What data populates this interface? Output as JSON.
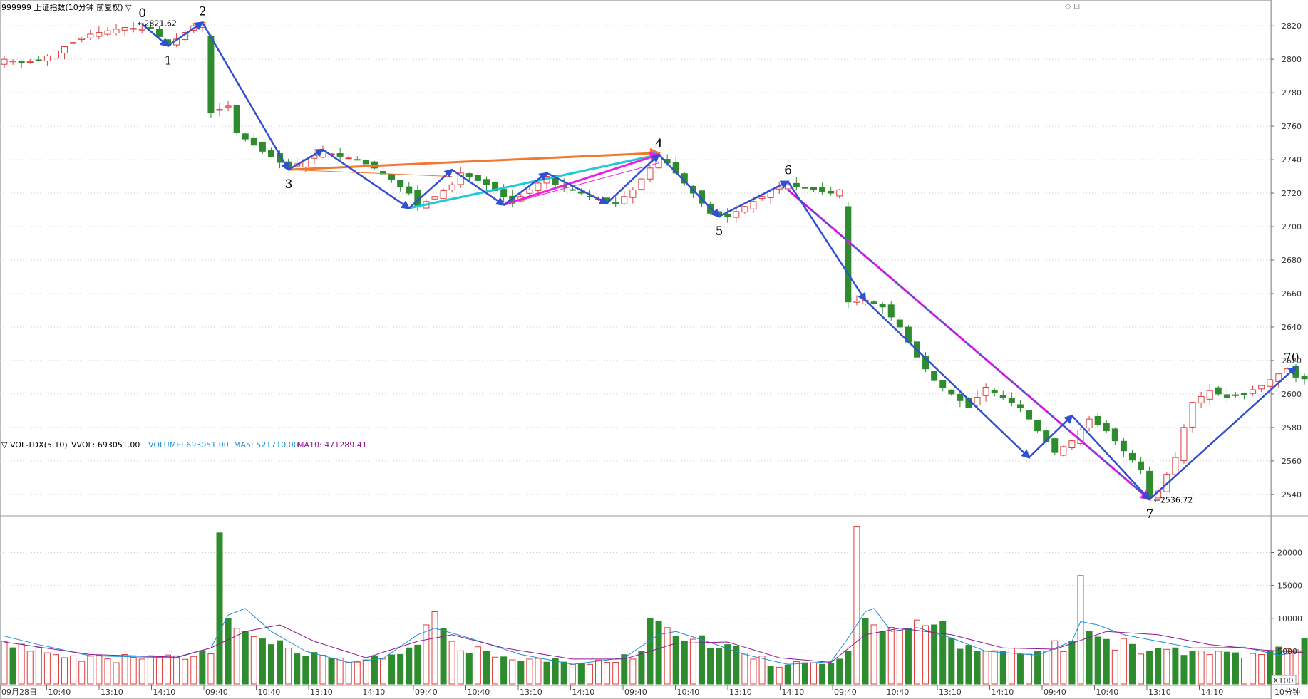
{
  "header": {
    "title": "999999 上证指数(10分钟 前复权) ▽",
    "vol_indicator": "▽ VOL-TDX(5,10)",
    "vvol": "VVOL: 693051.00",
    "volume": "VOLUME: 693051.00",
    "ma5": "MA5: 521710.00",
    "ma10": "MA10: 471289.41"
  },
  "colors": {
    "up": "#e03c3c",
    "down": "#2e8b2e",
    "wave": "#3050d0",
    "orange": "#f07830",
    "cyan": "#20c8d8",
    "magenta": "#f020e0",
    "ma5": "#1a8fd8",
    "ma10": "#901890"
  },
  "chart_data": {
    "type": "candlestick",
    "price_axis": {
      "ticks": [
        2540,
        2560,
        2580,
        2600,
        2620,
        2640,
        2660,
        2680,
        2700,
        2720,
        2740,
        2760,
        2780,
        2800,
        2820
      ],
      "range": [
        2528,
        2832
      ]
    },
    "volume_axis": {
      "ticks": [
        5000,
        10000,
        15000,
        20000
      ],
      "unit_label": "X100",
      "range": [
        0,
        24500
      ]
    },
    "x_axis": {
      "labels": [
        "09月28日",
        "10:40",
        "13:10",
        "14:10",
        "09:40",
        "10:40",
        "13:10",
        "14:10",
        "09:40",
        "10:40",
        "13:10",
        "14:10",
        "09:40",
        "10:40",
        "13:10",
        "14:10",
        "09:40",
        "10:40",
        "13:10",
        "14:10",
        "09:40",
        "10:40",
        "13:10",
        "14:10"
      ],
      "period": "10分钟"
    },
    "price_key": [
      [
        0,
        2800
      ],
      [
        2,
        2798
      ],
      [
        4,
        2799
      ],
      [
        6,
        2805
      ],
      [
        8,
        2810
      ],
      [
        10,
        2815
      ],
      [
        12,
        2817
      ],
      [
        14,
        2819
      ],
      [
        16,
        2818
      ],
      [
        17,
        2819
      ],
      [
        19,
        2808
      ],
      [
        22,
        2820
      ],
      [
        23,
        2822
      ],
      [
        24,
        2768
      ],
      [
        26,
        2772
      ],
      [
        27,
        2756
      ],
      [
        30,
        2745
      ],
      [
        33,
        2735
      ],
      [
        35,
        2740
      ],
      [
        37,
        2745
      ],
      [
        39,
        2742
      ],
      [
        41,
        2740
      ],
      [
        43,
        2735
      ],
      [
        45,
        2728
      ],
      [
        47,
        2720
      ],
      [
        48,
        2712
      ],
      [
        50,
        2718
      ],
      [
        52,
        2725
      ],
      [
        53,
        2732
      ],
      [
        54,
        2730
      ],
      [
        56,
        2725
      ],
      [
        58,
        2718
      ],
      [
        59,
        2714
      ],
      [
        61,
        2722
      ],
      [
        63,
        2730
      ],
      [
        64,
        2725
      ],
      [
        66,
        2722
      ],
      [
        68,
        2718
      ],
      [
        70,
        2715
      ],
      [
        71,
        2714
      ],
      [
        73,
        2722
      ],
      [
        75,
        2735
      ],
      [
        76,
        2742
      ],
      [
        77,
        2738
      ],
      [
        78,
        2732
      ],
      [
        80,
        2720
      ],
      [
        82,
        2708
      ],
      [
        84,
        2706
      ],
      [
        86,
        2712
      ],
      [
        88,
        2718
      ],
      [
        89,
        2722
      ],
      [
        91,
        2725
      ],
      [
        92,
        2724
      ],
      [
        94,
        2722
      ],
      [
        96,
        2720
      ],
      [
        97,
        2722
      ],
      [
        98,
        2655
      ],
      [
        100,
        2656
      ],
      [
        102,
        2652
      ],
      [
        104,
        2640
      ],
      [
        106,
        2622
      ],
      [
        108,
        2608
      ],
      [
        110,
        2600
      ],
      [
        112,
        2592
      ],
      [
        114,
        2604
      ],
      [
        116,
        2598
      ],
      [
        118,
        2592
      ],
      [
        120,
        2578
      ],
      [
        122,
        2565
      ],
      [
        124,
        2572
      ],
      [
        126,
        2585
      ],
      [
        128,
        2578
      ],
      [
        130,
        2566
      ],
      [
        132,
        2555
      ],
      [
        133,
        2538
      ],
      [
        134,
        2542
      ],
      [
        136,
        2562
      ],
      [
        137,
        2580
      ],
      [
        138,
        2595
      ],
      [
        140,
        2602
      ],
      [
        142,
        2598
      ],
      [
        144,
        2600
      ],
      [
        146,
        2605
      ],
      [
        148,
        2612
      ],
      [
        149,
        2615
      ],
      [
        150,
        2610
      ],
      [
        151,
        2609
      ]
    ],
    "vol_key": [
      [
        0,
        6500
      ],
      [
        3,
        5000
      ],
      [
        8,
        4300
      ],
      [
        16,
        3800
      ],
      [
        22,
        4200
      ],
      [
        24,
        4600
      ],
      [
        25,
        23000
      ],
      [
        26,
        10000
      ],
      [
        28,
        8000
      ],
      [
        31,
        6000
      ],
      [
        35,
        4200
      ],
      [
        40,
        3300
      ],
      [
        44,
        3800
      ],
      [
        47,
        5500
      ],
      [
        49,
        9000
      ],
      [
        50,
        11000
      ],
      [
        52,
        6500
      ],
      [
        56,
        5000
      ],
      [
        61,
        3800
      ],
      [
        66,
        3000
      ],
      [
        70,
        3300
      ],
      [
        74,
        5000
      ],
      [
        75,
        10000
      ],
      [
        76,
        9500
      ],
      [
        79,
        6500
      ],
      [
        84,
        6000
      ],
      [
        87,
        3800
      ],
      [
        91,
        2900
      ],
      [
        95,
        3000
      ],
      [
        97,
        3800
      ],
      [
        98,
        5000
      ],
      [
        99,
        24000
      ],
      [
        100,
        10000
      ],
      [
        102,
        8000
      ],
      [
        105,
        8500
      ],
      [
        108,
        9000
      ],
      [
        110,
        7000
      ],
      [
        114,
        5000
      ],
      [
        118,
        4500
      ],
      [
        121,
        5000
      ],
      [
        124,
        6500
      ],
      [
        125,
        16500
      ],
      [
        126,
        8000
      ],
      [
        128,
        6800
      ],
      [
        133,
        5000
      ],
      [
        136,
        5500
      ],
      [
        141,
        5000
      ],
      [
        146,
        4500
      ],
      [
        150,
        5200
      ],
      [
        151,
        6900
      ]
    ],
    "annotations": {
      "wave_labels": [
        {
          "text": "0",
          "i": 16
        },
        {
          "text": "1",
          "i": 19
        },
        {
          "text": "2",
          "i": 23
        },
        {
          "text": "3",
          "i": 33
        },
        {
          "text": "4",
          "i": 76
        },
        {
          "text": "5",
          "i": 83
        },
        {
          "text": "6",
          "i": 91
        },
        {
          "text": "7",
          "i": 133
        },
        {
          "text": "70",
          "i": 149
        }
      ],
      "price_marks": [
        {
          "text": "2821.62",
          "i": 15,
          "price": 2821.62
        },
        {
          "text": "2536.72",
          "i": 133,
          "price": 2536.72
        }
      ]
    },
    "wave_lines": {
      "main": [
        [
          16,
          2821
        ],
        [
          19,
          2808
        ],
        [
          23,
          2822
        ],
        [
          33,
          2734
        ],
        [
          37,
          2746
        ],
        [
          47,
          2711
        ],
        [
          52,
          2734
        ],
        [
          58,
          2713
        ],
        [
          63,
          2732
        ],
        [
          70,
          2714
        ],
        [
          76,
          2743
        ],
        [
          83,
          2706
        ],
        [
          91,
          2727
        ],
        [
          100,
          2656
        ],
        [
          119,
          2562
        ],
        [
          124,
          2587
        ],
        [
          133,
          2537
        ],
        [
          150,
          2616
        ]
      ],
      "thin": [
        [
          91,
          2722
        ],
        [
          133,
          2537
        ]
      ],
      "orange": [
        [
          33,
          2734
        ],
        [
          76,
          2744
        ]
      ],
      "cyan": [
        [
          47,
          2711
        ],
        [
          76,
          2743
        ]
      ],
      "magenta": [
        [
          58,
          2713
        ],
        [
          76,
          2743
        ]
      ],
      "magenta2": [
        [
          91,
          2722
        ],
        [
          133,
          2537
        ]
      ]
    },
    "ma5_key": [
      [
        0,
        7300
      ],
      [
        4,
        6000
      ],
      [
        10,
        4300
      ],
      [
        20,
        4000
      ],
      [
        24,
        5500
      ],
      [
        26,
        10500
      ],
      [
        28,
        11500
      ],
      [
        31,
        8000
      ],
      [
        35,
        5000
      ],
      [
        40,
        3300
      ],
      [
        44,
        3900
      ],
      [
        48,
        7500
      ],
      [
        50,
        8500
      ],
      [
        54,
        7000
      ],
      [
        60,
        4500
      ],
      [
        66,
        3000
      ],
      [
        72,
        4000
      ],
      [
        76,
        7500
      ],
      [
        78,
        8000
      ],
      [
        82,
        6300
      ],
      [
        86,
        4500
      ],
      [
        91,
        3000
      ],
      [
        96,
        3400
      ],
      [
        98,
        7000
      ],
      [
        100,
        11000
      ],
      [
        101,
        11500
      ],
      [
        103,
        8000
      ],
      [
        106,
        8600
      ],
      [
        110,
        7000
      ],
      [
        114,
        5000
      ],
      [
        120,
        4400
      ],
      [
        124,
        6500
      ],
      [
        125,
        9500
      ],
      [
        127,
        9000
      ],
      [
        130,
        7500
      ],
      [
        134,
        6500
      ],
      [
        138,
        5500
      ],
      [
        144,
        5600
      ],
      [
        148,
        4400
      ],
      [
        151,
        5000
      ]
    ],
    "ma10_key": [
      [
        0,
        6400
      ],
      [
        10,
        4500
      ],
      [
        20,
        4100
      ],
      [
        24,
        5500
      ],
      [
        28,
        8000
      ],
      [
        32,
        9000
      ],
      [
        36,
        6500
      ],
      [
        42,
        4000
      ],
      [
        48,
        6500
      ],
      [
        52,
        7500
      ],
      [
        58,
        5500
      ],
      [
        66,
        3800
      ],
      [
        72,
        3800
      ],
      [
        78,
        6200
      ],
      [
        84,
        6400
      ],
      [
        90,
        4000
      ],
      [
        96,
        3300
      ],
      [
        100,
        7500
      ],
      [
        104,
        8500
      ],
      [
        110,
        7500
      ],
      [
        116,
        5500
      ],
      [
        122,
        5300
      ],
      [
        128,
        8000
      ],
      [
        134,
        7500
      ],
      [
        140,
        6000
      ],
      [
        146,
        5200
      ],
      [
        151,
        4800
      ]
    ]
  }
}
